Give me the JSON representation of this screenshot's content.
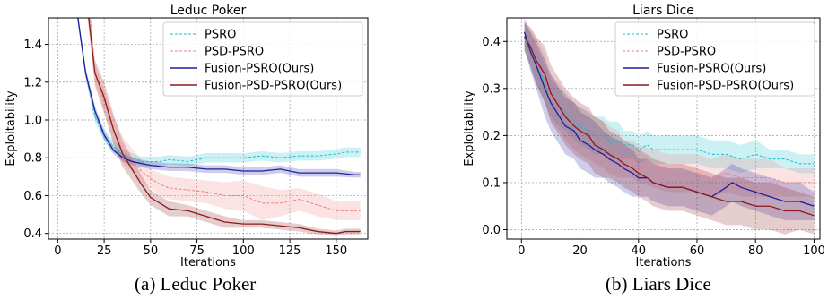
{
  "captions": [
    "(a) Leduc Poker",
    "(b) Liars Dice"
  ],
  "chart_data": [
    {
      "type": "line",
      "title": "Leduc Poker",
      "xlabel": "Iterations",
      "ylabel": "Exploitability",
      "xlim": [
        -5,
        167
      ],
      "ylim": [
        0.37,
        1.54
      ],
      "xticks": [
        0,
        25,
        50,
        75,
        100,
        125,
        150
      ],
      "yticks": [
        0.4,
        0.6,
        0.8,
        1.0,
        1.2,
        1.4
      ],
      "xtick_labels": [
        "0",
        "25",
        "50",
        "75",
        "100",
        "125",
        "150"
      ],
      "ytick_labels": [
        "0.4",
        "0.6",
        "0.8",
        "1.0",
        "1.2",
        "1.4"
      ],
      "grid": true,
      "legend_position": "top-right",
      "series": [
        {
          "name": "PSRO",
          "color": "#17becf",
          "style": "dashed",
          "x": [
            10,
            15,
            20,
            25,
            30,
            35,
            40,
            45,
            50,
            55,
            60,
            70,
            80,
            90,
            100,
            110,
            120,
            130,
            140,
            150,
            155,
            160,
            163
          ],
          "y": [
            1.6,
            1.25,
            1.02,
            0.92,
            0.86,
            0.82,
            0.8,
            0.78,
            0.78,
            0.78,
            0.79,
            0.78,
            0.8,
            0.8,
            0.8,
            0.81,
            0.8,
            0.81,
            0.81,
            0.82,
            0.83,
            0.83,
            0.83
          ],
          "band": [
            0.03,
            0.03,
            0.03,
            0.03,
            0.03,
            0.025,
            0.025,
            0.025,
            0.025,
            0.025,
            0.025,
            0.025,
            0.025,
            0.025,
            0.025,
            0.025,
            0.025,
            0.025,
            0.025,
            0.025,
            0.025,
            0.025,
            0.025
          ]
        },
        {
          "name": "PSD-PSRO",
          "color": "#f08080",
          "style": "dashed",
          "x": [
            17,
            20,
            25,
            30,
            35,
            40,
            45,
            50,
            55,
            60,
            70,
            80,
            90,
            100,
            110,
            120,
            130,
            140,
            150,
            160,
            163
          ],
          "y": [
            1.6,
            1.25,
            1.1,
            0.95,
            0.84,
            0.79,
            0.73,
            0.69,
            0.66,
            0.64,
            0.63,
            0.62,
            0.6,
            0.6,
            0.56,
            0.56,
            0.58,
            0.55,
            0.52,
            0.52,
            0.52
          ],
          "band": [
            0.05,
            0.05,
            0.06,
            0.07,
            0.07,
            0.06,
            0.06,
            0.05,
            0.06,
            0.06,
            0.06,
            0.06,
            0.07,
            0.08,
            0.09,
            0.07,
            0.06,
            0.06,
            0.05,
            0.05,
            0.05
          ]
        },
        {
          "name": "Fusion-PSRO(Ours)",
          "color": "#1f1f9e",
          "style": "solid",
          "x": [
            10,
            15,
            20,
            25,
            30,
            35,
            40,
            45,
            50,
            60,
            70,
            80,
            90,
            100,
            110,
            120,
            130,
            140,
            150,
            160,
            163
          ],
          "y": [
            1.6,
            1.25,
            1.05,
            0.92,
            0.84,
            0.8,
            0.78,
            0.77,
            0.76,
            0.75,
            0.75,
            0.74,
            0.74,
            0.73,
            0.73,
            0.74,
            0.72,
            0.72,
            0.72,
            0.71,
            0.71
          ],
          "band": [
            0.025,
            0.025,
            0.025,
            0.025,
            0.02,
            0.02,
            0.02,
            0.02,
            0.02,
            0.02,
            0.02,
            0.02,
            0.02,
            0.02,
            0.02,
            0.02,
            0.02,
            0.02,
            0.02,
            0.015,
            0.015
          ]
        },
        {
          "name": "Fusion-PSD-PSRO(Ours)",
          "color": "#8b1a1a",
          "style": "solid",
          "x": [
            16,
            20,
            25,
            30,
            35,
            40,
            45,
            50,
            55,
            60,
            70,
            80,
            90,
            100,
            110,
            120,
            130,
            140,
            150,
            155,
            160,
            163
          ],
          "y": [
            1.6,
            1.25,
            1.12,
            0.95,
            0.82,
            0.74,
            0.66,
            0.59,
            0.56,
            0.53,
            0.52,
            0.49,
            0.46,
            0.45,
            0.45,
            0.44,
            0.43,
            0.41,
            0.4,
            0.41,
            0.41,
            0.41
          ],
          "band": [
            0.06,
            0.07,
            0.08,
            0.08,
            0.07,
            0.06,
            0.05,
            0.04,
            0.04,
            0.04,
            0.03,
            0.03,
            0.03,
            0.02,
            0.02,
            0.02,
            0.02,
            0.015,
            0.015,
            0.015,
            0.015,
            0.015
          ]
        }
      ]
    },
    {
      "type": "line",
      "title": "Liars Dice",
      "xlabel": "Iterations",
      "ylabel": "Exploitability",
      "xlim": [
        -5,
        102
      ],
      "ylim": [
        -0.02,
        0.45
      ],
      "xticks": [
        0,
        20,
        40,
        60,
        80,
        100
      ],
      "yticks": [
        0.0,
        0.1,
        0.2,
        0.3,
        0.4
      ],
      "xtick_labels": [
        "0",
        "20",
        "40",
        "60",
        "80",
        "100"
      ],
      "ytick_labels": [
        "0.0",
        "0.1",
        "0.2",
        "0.3",
        "0.4"
      ],
      "grid": true,
      "legend_position": "top-right",
      "series": [
        {
          "name": "PSRO",
          "color": "#17becf",
          "style": "dashed",
          "x": [
            1,
            3,
            5,
            8,
            10,
            13,
            15,
            18,
            20,
            23,
            25,
            28,
            30,
            33,
            35,
            38,
            40,
            43,
            45,
            48,
            50,
            55,
            60,
            65,
            70,
            75,
            80,
            85,
            90,
            95,
            100
          ],
          "y": [
            0.41,
            0.38,
            0.35,
            0.31,
            0.28,
            0.26,
            0.25,
            0.23,
            0.22,
            0.21,
            0.2,
            0.2,
            0.19,
            0.19,
            0.18,
            0.18,
            0.17,
            0.18,
            0.17,
            0.17,
            0.17,
            0.17,
            0.17,
            0.16,
            0.16,
            0.15,
            0.16,
            0.15,
            0.15,
            0.14,
            0.14
          ],
          "band": [
            0.03,
            0.04,
            0.04,
            0.04,
            0.04,
            0.04,
            0.04,
            0.04,
            0.04,
            0.04,
            0.04,
            0.04,
            0.04,
            0.04,
            0.03,
            0.03,
            0.03,
            0.03,
            0.03,
            0.03,
            0.03,
            0.03,
            0.03,
            0.03,
            0.03,
            0.03,
            0.03,
            0.02,
            0.02,
            0.02,
            0.02
          ]
        },
        {
          "name": "PSD-PSRO",
          "color": "#f08080",
          "style": "dashed",
          "x": [
            1,
            3,
            5,
            8,
            10,
            13,
            15,
            18,
            20,
            23,
            25,
            28,
            30,
            33,
            35,
            38,
            40,
            45,
            50,
            55,
            60,
            65,
            70,
            75,
            80,
            85,
            90,
            95,
            100
          ],
          "y": [
            0.41,
            0.39,
            0.36,
            0.32,
            0.28,
            0.26,
            0.24,
            0.22,
            0.21,
            0.2,
            0.19,
            0.18,
            0.17,
            0.16,
            0.15,
            0.15,
            0.14,
            0.13,
            0.12,
            0.12,
            0.12,
            0.11,
            0.12,
            0.11,
            0.11,
            0.11,
            0.1,
            0.1,
            0.1
          ],
          "band": [
            0.03,
            0.04,
            0.05,
            0.05,
            0.05,
            0.05,
            0.05,
            0.05,
            0.05,
            0.05,
            0.05,
            0.05,
            0.05,
            0.05,
            0.04,
            0.04,
            0.04,
            0.04,
            0.04,
            0.04,
            0.04,
            0.04,
            0.04,
            0.04,
            0.04,
            0.04,
            0.03,
            0.03,
            0.03
          ]
        },
        {
          "name": "Fusion-PSRO(Ours)",
          "color": "#1f1f9e",
          "style": "solid",
          "x": [
            1,
            3,
            5,
            8,
            10,
            13,
            15,
            18,
            20,
            23,
            25,
            28,
            30,
            33,
            35,
            38,
            40,
            43,
            45,
            50,
            55,
            60,
            65,
            70,
            72,
            75,
            80,
            85,
            90,
            95,
            100
          ],
          "y": [
            0.42,
            0.38,
            0.35,
            0.3,
            0.27,
            0.24,
            0.22,
            0.21,
            0.19,
            0.18,
            0.17,
            0.16,
            0.15,
            0.14,
            0.13,
            0.12,
            0.11,
            0.11,
            0.1,
            0.09,
            0.09,
            0.08,
            0.07,
            0.09,
            0.1,
            0.09,
            0.08,
            0.07,
            0.06,
            0.06,
            0.05
          ],
          "band": [
            0.03,
            0.04,
            0.05,
            0.06,
            0.06,
            0.06,
            0.06,
            0.06,
            0.06,
            0.06,
            0.06,
            0.05,
            0.05,
            0.05,
            0.05,
            0.05,
            0.04,
            0.04,
            0.04,
            0.04,
            0.04,
            0.04,
            0.04,
            0.04,
            0.04,
            0.04,
            0.04,
            0.04,
            0.04,
            0.04,
            0.03
          ]
        },
        {
          "name": "Fusion-PSD-PSRO(Ours)",
          "color": "#8b1a1a",
          "style": "solid",
          "x": [
            1,
            3,
            5,
            8,
            10,
            13,
            15,
            18,
            20,
            23,
            25,
            28,
            30,
            33,
            35,
            38,
            40,
            43,
            45,
            50,
            55,
            60,
            65,
            70,
            75,
            80,
            85,
            90,
            95,
            100
          ],
          "y": [
            0.41,
            0.39,
            0.36,
            0.33,
            0.29,
            0.26,
            0.24,
            0.22,
            0.21,
            0.2,
            0.18,
            0.17,
            0.16,
            0.15,
            0.14,
            0.13,
            0.12,
            0.11,
            0.1,
            0.09,
            0.09,
            0.08,
            0.07,
            0.06,
            0.06,
            0.05,
            0.05,
            0.04,
            0.04,
            0.03
          ],
          "band": [
            0.03,
            0.04,
            0.05,
            0.06,
            0.06,
            0.06,
            0.06,
            0.06,
            0.06,
            0.06,
            0.06,
            0.06,
            0.05,
            0.05,
            0.05,
            0.05,
            0.05,
            0.05,
            0.05,
            0.05,
            0.05,
            0.05,
            0.05,
            0.05,
            0.05,
            0.05,
            0.05,
            0.05,
            0.04,
            0.04
          ]
        }
      ]
    }
  ]
}
